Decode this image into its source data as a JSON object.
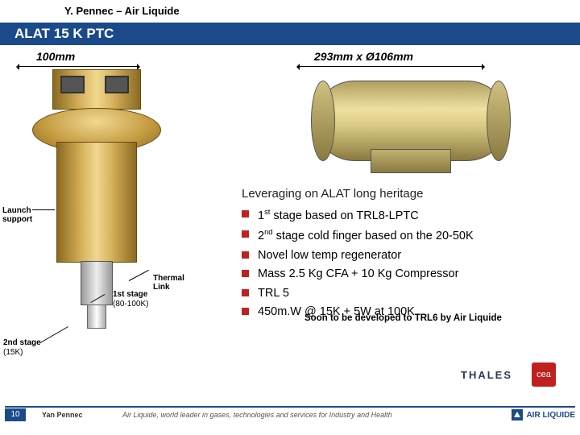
{
  "author": "Y. Pennec – Air Liquide",
  "title": "ALAT 15 K PTC",
  "dimensions": {
    "left": "100mm",
    "right": "293mm x Ø106mm"
  },
  "labels": {
    "launch_support": "Launch support",
    "thermal_link": "Thermal Link",
    "stage1": "1st stage",
    "stage1_range": "(80-100K)",
    "stage2": "2nd stage",
    "stage2_range": "(15K)"
  },
  "lead": "Leveraging on ALAT long heritage",
  "bullets": [
    "1st stage based on TRL8-LPTC",
    "2nd stage cold finger based on the 20-50K",
    "Novel low temp regenerator",
    "Mass 2.5 Kg CFA + 10 Kg Compressor",
    "TRL 5",
    "450m.W @ 15K + 5W at 100K"
  ],
  "annotation": "Soon to be developed to TRL6 by Air Liquide",
  "logos": {
    "thales": "THALES",
    "cea": "cea"
  },
  "footer": {
    "page": "10",
    "name": "Yan Pennec",
    "tagline": "Air Liquide, world leader in gases, technologies and services for Industry and Health",
    "brand": "AIR LIQUIDE"
  },
  "colors": {
    "bar": "#1a4a8a",
    "bullet": "#c02020"
  }
}
